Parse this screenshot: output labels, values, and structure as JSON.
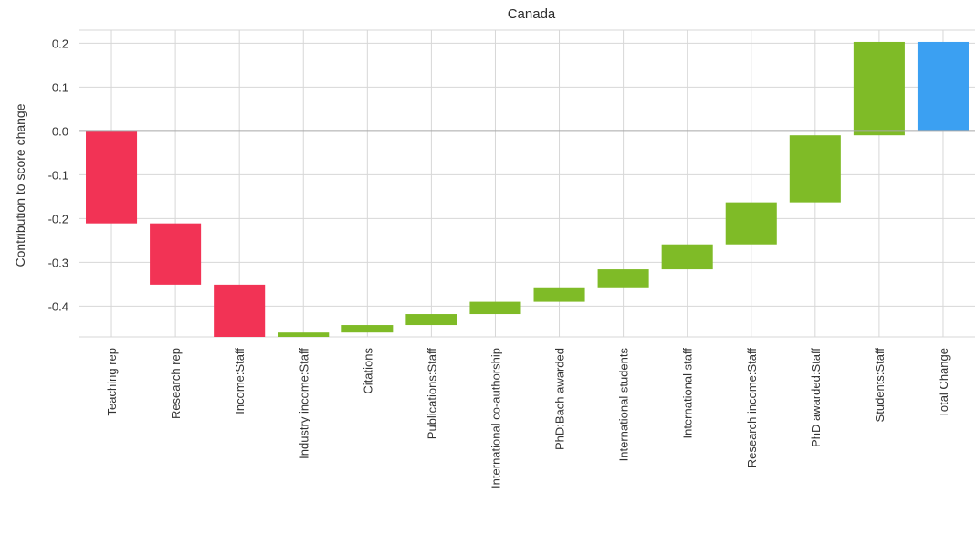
{
  "chart_data": {
    "type": "bar",
    "subtype": "waterfall",
    "title": "Canada",
    "xlabel": "",
    "ylabel": "Contribution to score change",
    "ylim": [
      -0.47,
      0.23
    ],
    "yticks": [
      0.2,
      0.1,
      0.0,
      -0.1,
      -0.2,
      -0.3,
      -0.4
    ],
    "ytick_labels": [
      "0.2",
      "0.1",
      "0.0",
      "-0.1",
      "-0.2",
      "-0.3",
      "-0.4"
    ],
    "grid": true,
    "colors": {
      "negative": "#f23355",
      "positive": "#7fbb27",
      "total": "#3ba0f2",
      "grid": "#d7d7d7",
      "zero_line": "#a8a8a8"
    },
    "categories": [
      "Teaching rep",
      "Research rep",
      "Income:Staff",
      "Industry income:Staff",
      "Citations",
      "Publications:Staff",
      "International co-authorship",
      "PhD:Bach awarded",
      "International students",
      "International staff",
      "Research income:Staff",
      "PhD awarded:Staff",
      "Students:Staff",
      "Total Change"
    ],
    "bars": [
      {
        "start": 0.0,
        "end": -0.211,
        "kind": "negative"
      },
      {
        "start": -0.211,
        "end": -0.351,
        "kind": "negative"
      },
      {
        "start": -0.351,
        "end": -0.472,
        "kind": "negative"
      },
      {
        "start": -0.472,
        "end": -0.46,
        "kind": "positive"
      },
      {
        "start": -0.46,
        "end": -0.443,
        "kind": "positive"
      },
      {
        "start": -0.443,
        "end": -0.418,
        "kind": "positive"
      },
      {
        "start": -0.418,
        "end": -0.39,
        "kind": "positive"
      },
      {
        "start": -0.39,
        "end": -0.357,
        "kind": "positive"
      },
      {
        "start": -0.357,
        "end": -0.316,
        "kind": "positive"
      },
      {
        "start": -0.316,
        "end": -0.259,
        "kind": "positive"
      },
      {
        "start": -0.259,
        "end": -0.163,
        "kind": "positive"
      },
      {
        "start": -0.163,
        "end": -0.01,
        "kind": "positive"
      },
      {
        "start": -0.01,
        "end": 0.203,
        "kind": "positive"
      },
      {
        "start": 0.0,
        "end": 0.203,
        "kind": "total"
      }
    ]
  }
}
